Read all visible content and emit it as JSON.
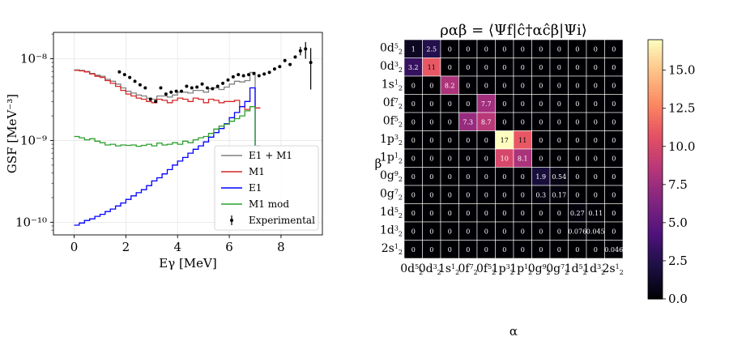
{
  "chart_data": [
    {
      "type": "line",
      "ylabel": "GSF [MeV⁻³]",
      "xlabel": "Eγ [MeV]",
      "yscale": "log",
      "xlim": [
        -0.8,
        9.6
      ],
      "ylim": [
        7e-11,
        2.1e-08
      ],
      "x_ticks": [
        "0",
        "2",
        "4",
        "6",
        "8"
      ],
      "y_ticks": [
        "10⁻¹⁰",
        "10⁻⁹",
        "10⁻⁸"
      ],
      "grid": true,
      "legend_position": "lower-right",
      "series": [
        {
          "name": "E1 + M1",
          "color": "#808080",
          "x": [
            0.1,
            0.3,
            0.5,
            0.7,
            0.9,
            1.1,
            1.3,
            1.5,
            1.7,
            1.9,
            2.1,
            2.3,
            2.5,
            2.7,
            2.9,
            3.1,
            3.3,
            3.5,
            3.7,
            3.9,
            4.1,
            4.3,
            4.5,
            4.7,
            4.9,
            5.1,
            5.3,
            5.5,
            5.7,
            5.9,
            6.1,
            6.3,
            6.5,
            6.7,
            6.9,
            7.1
          ],
          "values": [
            7.3e-09,
            7.2e-09,
            7e-09,
            6.6e-09,
            6.3e-09,
            6.1e-09,
            5.6e-09,
            5.3e-09,
            4.9e-09,
            4.4e-09,
            4e-09,
            3.8e-09,
            3.6e-09,
            3.5e-09,
            3.3e-09,
            3.2e-09,
            3.5e-09,
            3.5e-09,
            3.4e-09,
            3.6e-09,
            3.9e-09,
            3.9e-09,
            3.8e-09,
            4.1e-09,
            4.1e-09,
            3.9e-09,
            4.3e-09,
            4.4e-09,
            4.2e-09,
            4.5e-09,
            4.9e-09,
            5.3e-09,
            5.2e-09,
            5.4e-09,
            6.8e-09,
            2.5e-09
          ]
        },
        {
          "name": "M1",
          "color": "#d62728",
          "x": [
            0.1,
            0.3,
            0.5,
            0.7,
            0.9,
            1.1,
            1.3,
            1.5,
            1.7,
            1.9,
            2.1,
            2.3,
            2.5,
            2.7,
            2.9,
            3.1,
            3.3,
            3.5,
            3.7,
            3.9,
            4.1,
            4.3,
            4.5,
            4.7,
            4.9,
            5.1,
            5.3,
            5.5,
            5.7,
            5.9,
            6.1,
            6.3,
            6.5,
            6.7,
            6.9,
            7.1
          ],
          "values": [
            7.2e-09,
            7.1e-09,
            6.9e-09,
            6.5e-09,
            6.1e-09,
            5.9e-09,
            5.4e-09,
            5e-09,
            4.6e-09,
            4.1e-09,
            3.7e-09,
            3.5e-09,
            3.3e-09,
            3.2e-09,
            3e-09,
            2.9e-09,
            3.2e-09,
            3.1e-09,
            2.9e-09,
            3.1e-09,
            3.3e-09,
            3.2e-09,
            3e-09,
            3.3e-09,
            3.2e-09,
            2.9e-09,
            3.2e-09,
            3.1e-09,
            2.9e-09,
            3e-09,
            3e-09,
            3.1e-09,
            2.6e-09,
            2.4e-09,
            2.6e-09,
            2.5e-09
          ]
        },
        {
          "name": "E1",
          "color": "#0000ff",
          "x": [
            0.1,
            0.3,
            0.5,
            0.7,
            0.9,
            1.1,
            1.3,
            1.5,
            1.7,
            1.9,
            2.1,
            2.3,
            2.5,
            2.7,
            2.9,
            3.1,
            3.3,
            3.5,
            3.7,
            3.9,
            4.1,
            4.3,
            4.5,
            4.7,
            4.9,
            5.1,
            5.3,
            5.5,
            5.7,
            5.9,
            6.1,
            6.3,
            6.5,
            6.7,
            6.9,
            7.1
          ],
          "values": [
            9.2e-11,
            9.8e-11,
            1.05e-10,
            1.1e-10,
            1.18e-10,
            1.25e-10,
            1.35e-10,
            1.45e-10,
            1.58e-10,
            1.72e-10,
            1.9e-10,
            2.1e-10,
            2.3e-10,
            2.5e-10,
            2.8e-10,
            3.2e-10,
            3.5e-10,
            3.9e-10,
            4.4e-10,
            5e-10,
            5.6e-10,
            6.2e-10,
            7e-10,
            7.8e-10,
            8.6e-10,
            9.6e-10,
            1.1e-09,
            1.25e-09,
            1.4e-09,
            1.6e-09,
            1.9e-09,
            2.2e-09,
            2.6e-09,
            3e-09,
            4.4e-09,
            8.6e-10
          ]
        },
        {
          "name": "M1 mod",
          "color": "#2ca02c",
          "x": [
            0.1,
            0.3,
            0.5,
            0.7,
            0.9,
            1.1,
            1.3,
            1.5,
            1.7,
            1.9,
            2.1,
            2.3,
            2.5,
            2.7,
            2.9,
            3.1,
            3.3,
            3.5,
            3.7,
            3.9,
            4.1,
            4.3,
            4.5,
            4.7,
            4.9,
            5.1,
            5.3,
            5.5,
            5.7,
            5.9,
            6.1,
            6.3,
            6.5,
            6.7,
            6.9,
            7.1
          ],
          "values": [
            1.12e-09,
            1.08e-09,
            1.02e-09,
            1.05e-09,
            9.8e-10,
            9.4e-10,
            8.8e-10,
            9e-10,
            8.6e-10,
            8.8e-10,
            8.7e-10,
            8.8e-10,
            8.5e-10,
            8.7e-10,
            9e-10,
            8.6e-10,
            9.3e-10,
            8.8e-10,
            9e-10,
            9.4e-10,
            9e-10,
            9.8e-10,
            9.4e-10,
            1.02e-09,
            1.08e-09,
            1.12e-09,
            1.22e-09,
            1.38e-09,
            1.5e-09,
            1.58e-09,
            1.72e-09,
            1.85e-09,
            2e-09,
            2.3e-09,
            2.6e-09,
            8.6e-10
          ]
        },
        {
          "name": "Experimental",
          "color": "#000000",
          "marker": "dot",
          "x": [
            1.75,
            1.95,
            2.15,
            2.35,
            2.55,
            2.75,
            2.95,
            3.15,
            3.35,
            3.55,
            3.75,
            3.95,
            4.15,
            4.35,
            4.55,
            4.75,
            4.95,
            5.15,
            5.35,
            5.55,
            5.75,
            5.95,
            6.15,
            6.35,
            6.55,
            6.75,
            6.95,
            7.15,
            7.35,
            7.55,
            7.75,
            7.95,
            8.15,
            8.35,
            8.55,
            8.75,
            8.95,
            9.15
          ],
          "values": [
            6.9e-09,
            6.4e-09,
            5.9e-09,
            5.3e-09,
            4.8e-09,
            4.4e-09,
            3.2e-09,
            3e-09,
            4.4e-09,
            3.7e-09,
            3.9e-09,
            4e-09,
            4e-09,
            4.6e-09,
            4.4e-09,
            4.5e-09,
            4.9e-09,
            4.4e-09,
            4.3e-09,
            4.6e-09,
            5e-09,
            5.5e-09,
            6e-09,
            6.4e-09,
            6.2e-09,
            6.4e-09,
            6.6e-09,
            6.2e-09,
            6.5e-09,
            6.8e-09,
            7.5e-09,
            8e-09,
            9.5e-09,
            8.5e-09,
            1.05e-08,
            1.25e-08,
            1.32e-08,
            9e-09
          ],
          "error_low": [
            6.9e-09,
            6.4e-09,
            5.9e-09,
            5.3e-09,
            4.8e-09,
            4.4e-09,
            3.2e-09,
            3e-09,
            4.4e-09,
            3.7e-09,
            3.9e-09,
            4e-09,
            4e-09,
            4.6e-09,
            4.4e-09,
            4.5e-09,
            4.9e-09,
            4.4e-09,
            4.3e-09,
            4.6e-09,
            5e-09,
            5.5e-09,
            6e-09,
            6.4e-09,
            6.2e-09,
            6.4e-09,
            6.6e-09,
            6.2e-09,
            6.5e-09,
            6.8e-09,
            7.5e-09,
            8e-09,
            9.5e-09,
            8.5e-09,
            1.05e-08,
            1.1e-08,
            1e-08,
            4.2e-09
          ],
          "error_high": [
            6.9e-09,
            6.4e-09,
            5.9e-09,
            5.3e-09,
            4.8e-09,
            4.4e-09,
            3.2e-09,
            3e-09,
            4.4e-09,
            3.7e-09,
            3.9e-09,
            4e-09,
            4e-09,
            4.6e-09,
            4.4e-09,
            4.5e-09,
            4.9e-09,
            4.4e-09,
            4.3e-09,
            4.6e-09,
            5e-09,
            5.5e-09,
            6e-09,
            6.4e-09,
            6.2e-09,
            6.4e-09,
            6.6e-09,
            6.2e-09,
            6.5e-09,
            6.8e-09,
            7.5e-09,
            8e-09,
            9.5e-09,
            8.5e-09,
            1.05e-08,
            1.4e-08,
            1.6e-08,
            1.35e-08
          ]
        }
      ]
    },
    {
      "type": "heatmap",
      "title": "ραβ = ⟨Ψf|ĉ†αĉβ|Ψi⟩",
      "xlabel": "α",
      "ylabel": "β",
      "colormap": "magma",
      "vmin": 0,
      "vmax": 17,
      "colorbar_ticks": [
        "0.0",
        "2.5",
        "5.0",
        "7.5",
        "10.0",
        "12.5",
        "15.0"
      ],
      "colorbar_tick_values": [
        0,
        2.5,
        5.0,
        7.5,
        10.0,
        12.5,
        15.0
      ],
      "orbitals": [
        {
          "n": "0",
          "l": "d",
          "num": "5",
          "den": "2"
        },
        {
          "n": "0",
          "l": "d",
          "num": "3",
          "den": "2"
        },
        {
          "n": "1",
          "l": "s",
          "num": "1",
          "den": "2"
        },
        {
          "n": "0",
          "l": "f",
          "num": "7",
          "den": "2"
        },
        {
          "n": "0",
          "l": "f",
          "num": "5",
          "den": "2"
        },
        {
          "n": "1",
          "l": "p",
          "num": "3",
          "den": "2"
        },
        {
          "n": "1",
          "l": "p",
          "num": "1",
          "den": "2"
        },
        {
          "n": "0",
          "l": "g",
          "num": "9",
          "den": "2"
        },
        {
          "n": "0",
          "l": "g",
          "num": "7",
          "den": "2"
        },
        {
          "n": "1",
          "l": "d",
          "num": "5",
          "den": "2"
        },
        {
          "n": "1",
          "l": "d",
          "num": "3",
          "den": "2"
        },
        {
          "n": "2",
          "l": "s",
          "num": "1",
          "den": "2"
        }
      ],
      "values": [
        [
          1,
          2.5,
          0,
          0,
          0,
          0,
          0,
          0,
          0,
          0,
          0,
          0
        ],
        [
          3.2,
          11,
          0,
          0,
          0,
          0,
          0,
          0,
          0,
          0,
          0,
          0
        ],
        [
          0,
          0,
          8.2,
          0,
          0,
          0,
          0,
          0,
          0,
          0,
          0,
          0
        ],
        [
          0,
          0,
          0,
          0,
          7.7,
          0,
          0,
          0,
          0,
          0,
          0,
          0
        ],
        [
          0,
          0,
          0,
          7.3,
          8.7,
          0,
          0,
          0,
          0,
          0,
          0,
          0
        ],
        [
          0,
          0,
          0,
          0,
          0,
          17,
          11,
          0,
          0,
          0,
          0,
          0
        ],
        [
          0,
          0,
          0,
          0,
          0,
          10,
          8.1,
          0,
          0,
          0,
          0,
          0
        ],
        [
          0,
          0,
          0,
          0,
          0,
          0,
          0,
          1.9,
          0.54,
          0,
          0,
          0
        ],
        [
          0,
          0,
          0,
          0,
          0,
          0,
          0,
          0.3,
          0.17,
          0,
          0,
          0
        ],
        [
          0,
          0,
          0,
          0,
          0,
          0,
          0,
          0,
          0,
          0.27,
          0.11,
          0
        ],
        [
          0,
          0,
          0,
          0,
          0,
          0,
          0,
          0,
          0,
          0.076,
          0.045,
          0
        ],
        [
          0,
          0,
          0,
          0,
          0,
          0,
          0,
          0,
          0,
          0,
          0,
          0.046
        ]
      ]
    }
  ]
}
